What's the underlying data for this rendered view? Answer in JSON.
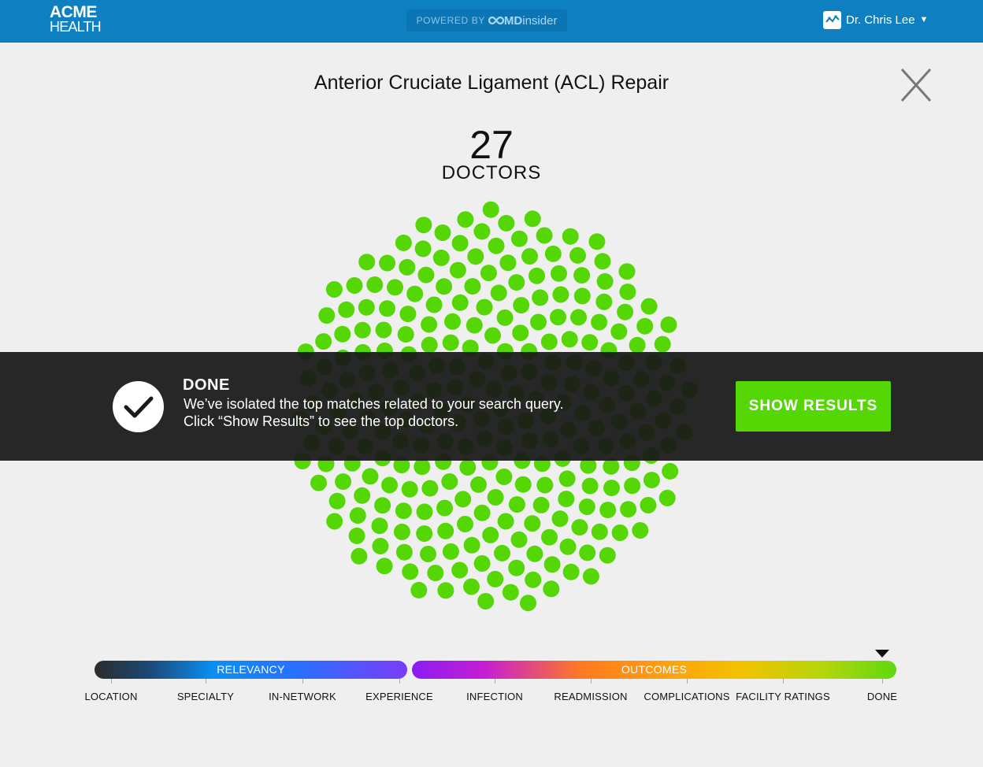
{
  "header": {
    "logo_line1": "ACME",
    "logo_line2": "HEALTH",
    "powered_by": "POWERED BY",
    "brand_bold": "MD",
    "brand_thin": "insider",
    "user_name": "Dr. Chris Lee"
  },
  "main": {
    "title": "Anterior Cruciate Ligament (ACL) Repair",
    "count": "27",
    "count_label": "DOCTORS",
    "dot_color": "#55d706"
  },
  "banner": {
    "status": "DONE",
    "line1": "We’ve isolated the top matches related to your search query.",
    "line2": "Click “Show Results” to see the top doctors.",
    "button": "SHOW RESULTS",
    "button_color": "#55d706"
  },
  "progress": {
    "left_label": "RELEVANCY",
    "right_label": "OUTCOMES",
    "current_step": "DONE",
    "steps": [
      "LOCATION",
      "SPECIALTY",
      "IN-NETWORK",
      "EXPERIENCE",
      "INFECTION",
      "READMISSION",
      "COMPLICATIONS",
      "FACILITY RATINGS",
      "DONE"
    ]
  },
  "icons": {
    "close": "close-x-icon",
    "check": "checkmark-icon",
    "avatar": "chart-avatar-icon",
    "caret": "caret-down-icon"
  }
}
